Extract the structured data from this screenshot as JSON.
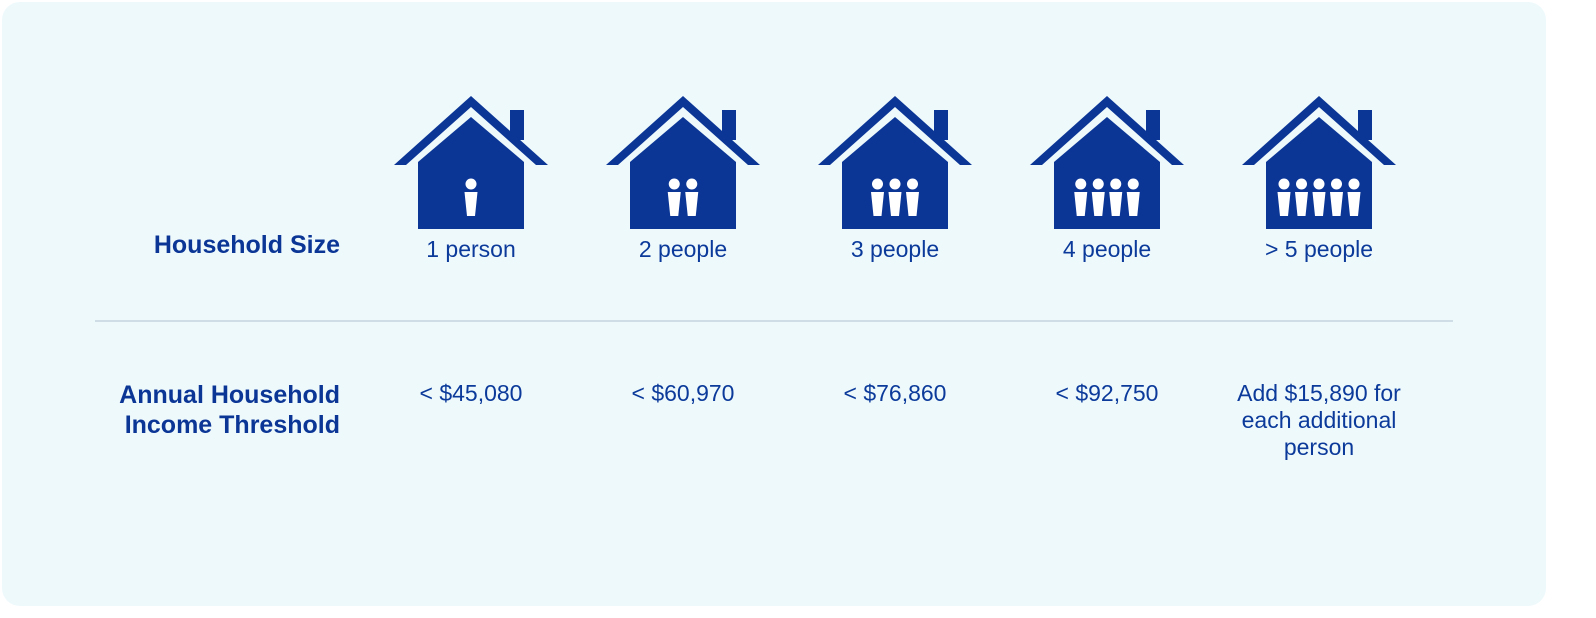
{
  "colors": {
    "background": "#eef9fc",
    "primary": "#0b3696",
    "divider": "#cfdde6",
    "figure": "#ffffff"
  },
  "labels": {
    "household_size": "Household Size",
    "income_line1": "Annual Household",
    "income_line2": "Income Threshold"
  },
  "columns": [
    {
      "people_count": 1,
      "icon": "house-1-person-icon",
      "size_label": "1 person",
      "threshold": "< $45,080"
    },
    {
      "people_count": 2,
      "icon": "house-2-people-icon",
      "size_label": "2 people",
      "threshold": "< $60,970"
    },
    {
      "people_count": 3,
      "icon": "house-3-people-icon",
      "size_label": "3 people",
      "threshold": "< $76,860"
    },
    {
      "people_count": 4,
      "icon": "house-4-people-icon",
      "size_label": "4 people",
      "threshold": "< $92,750"
    },
    {
      "people_count": 5,
      "icon": "house-5-people-icon",
      "size_label": "> 5 people",
      "threshold": "Add $15,890 for each additional person"
    }
  ]
}
